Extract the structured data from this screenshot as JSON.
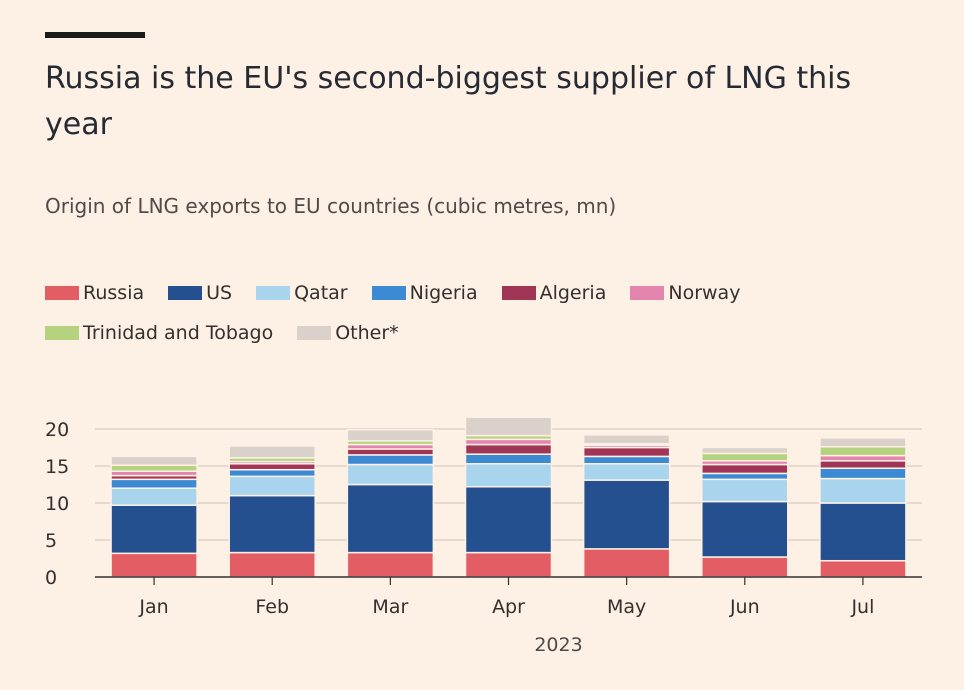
{
  "header": {
    "title": "Russia is the EU's second-biggest supplier of LNG this year",
    "subtitle": "Origin of LNG exports to EU countries (cubic metres, mn)"
  },
  "colors": {
    "background": "#fdf1e6",
    "grid": "#d9cdc1",
    "axis": "#33302e",
    "Russia": "#e35d64",
    "US": "#24508f",
    "Qatar": "#a8d4ee",
    "Nigeria": "#3c8ad3",
    "Algeria": "#a13556",
    "Norway": "#e485ae",
    "Trinidad and Tobago": "#b5d37f",
    "Other*": "#dad1ca"
  },
  "legend": {
    "rows": [
      [
        "Russia",
        "US",
        "Qatar",
        "Nigeria",
        "Algeria",
        "Norway"
      ],
      [
        "Trinidad and Tobago",
        "Other*"
      ]
    ]
  },
  "chart_data": {
    "type": "bar",
    "stacked": true,
    "categories": [
      "Jan",
      "Feb",
      "Mar",
      "Apr",
      "May",
      "Jun",
      "Jul"
    ],
    "xlabel": "2023",
    "ylabel": "",
    "ylim": [
      0,
      20
    ],
    "yticks": [
      0,
      5,
      10,
      15,
      20
    ],
    "grid": true,
    "legend_position": "top",
    "series": [
      {
        "name": "Russia",
        "values": [
          3.2,
          3.3,
          3.3,
          3.3,
          3.8,
          2.7,
          2.2
        ]
      },
      {
        "name": "US",
        "values": [
          6.5,
          7.7,
          9.2,
          8.9,
          9.3,
          7.5,
          7.8
        ]
      },
      {
        "name": "Qatar",
        "values": [
          2.3,
          2.6,
          2.7,
          3.1,
          2.2,
          3.0,
          3.3
        ]
      },
      {
        "name": "Nigeria",
        "values": [
          1.2,
          0.9,
          1.3,
          1.3,
          1.0,
          0.8,
          1.4
        ]
      },
      {
        "name": "Algeria",
        "values": [
          0.5,
          0.8,
          0.8,
          1.3,
          1.2,
          1.2,
          1.0
        ]
      },
      {
        "name": "Norway",
        "values": [
          0.6,
          0.3,
          0.6,
          0.7,
          0.3,
          0.5,
          0.7
        ]
      },
      {
        "name": "Trinidad and Tobago",
        "values": [
          0.8,
          0.5,
          0.5,
          0.5,
          0.2,
          1.0,
          1.2
        ]
      },
      {
        "name": "Other*",
        "values": [
          1.2,
          1.6,
          1.5,
          2.5,
          1.2,
          0.8,
          1.2
        ]
      }
    ]
  }
}
